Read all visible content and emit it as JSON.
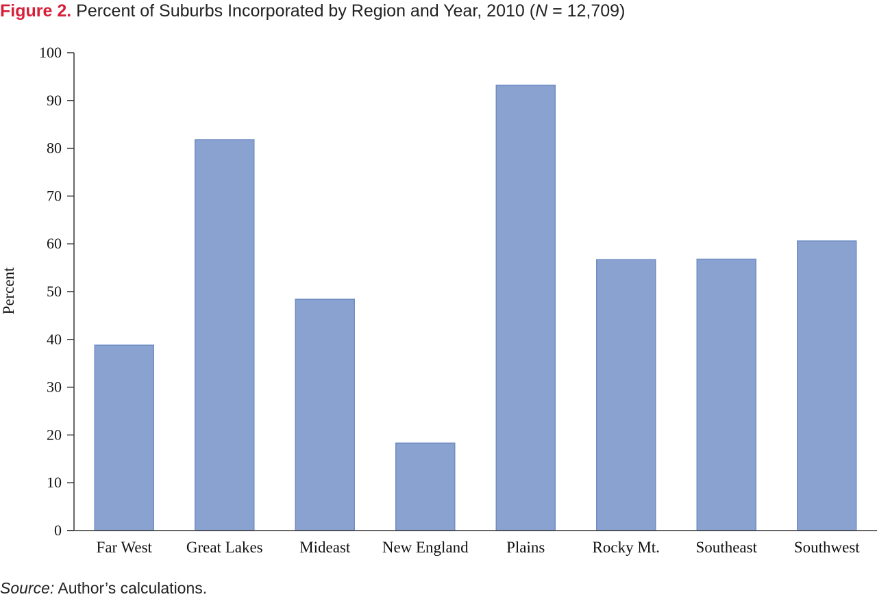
{
  "title": {
    "figure_label": "Figure 2.",
    "text_before_n": "Percent of Suburbs Incorporated by Region and Year, 2010 (",
    "n_symbol": "N",
    "text_after_n": " = 12,709)"
  },
  "source": {
    "label": "Source:",
    "text": " Author’s calculations."
  },
  "chart_data": {
    "type": "bar",
    "categories": [
      "Far West",
      "Great Lakes",
      "Mideast",
      "New England",
      "Plains",
      "Rocky Mt.",
      "Southeast",
      "Southwest"
    ],
    "values": [
      38.8,
      81.8,
      48.4,
      18.3,
      93.2,
      56.7,
      56.8,
      60.6
    ],
    "ylabel": "Percent",
    "ylim": [
      0,
      100
    ],
    "yticks": [
      0,
      10,
      20,
      30,
      40,
      50,
      60,
      70,
      80,
      90,
      100
    ],
    "grid": false,
    "legend": "none",
    "colors": {
      "bar_fill": "#8aa2d0",
      "bar_stroke": "#6f8cc4",
      "axis": "#333333"
    }
  }
}
